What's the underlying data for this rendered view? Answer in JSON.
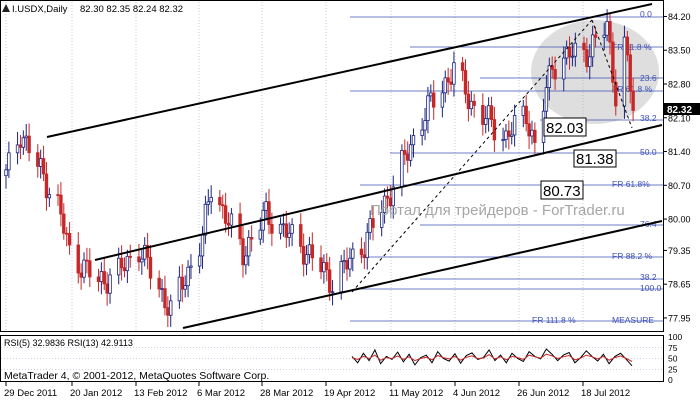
{
  "header": {
    "symbol_line": "I.USDX,Daily",
    "ohlc": "82.30 82.35 82.24 82.32"
  },
  "watermark": "Портал для трейдеров - ForTrader.ru",
  "copyright": "MetaTrader 4, © 2001-2012, MetaQuotes Software Corp.",
  "price_axis": {
    "ticks": [
      "84.20",
      "83.50",
      "82.80",
      "82.10",
      "81.40",
      "80.70",
      "80.00",
      "79.35",
      "78.65",
      "77.95"
    ],
    "current_price": "82.32"
  },
  "time_axis": {
    "labels": [
      "29 Dec 2011",
      "20 Jan 2012",
      "13 Feb 2012",
      "6 Mar 2012",
      "28 Mar 2012",
      "19 Apr 2012",
      "11 May 2012",
      "4 Jun 2012",
      "26 Jun 2012",
      "18 Jul 2012"
    ]
  },
  "price_labels": [
    "82.03",
    "81.38",
    "80.73"
  ],
  "fib_levels": [
    "0.0",
    "FR 11.8 %",
    "23.6",
    "FR 61.8 %",
    "38.2",
    "50.0",
    "FR 61.8%",
    "76.4",
    "FR 88.2 %",
    "38.2",
    "100.0",
    "FR 111.8 %",
    "MEASURE"
  ],
  "rsi": {
    "label": "RSI(5) 32.9836  RSI(13) 42.9113",
    "ticks": [
      "100",
      "75",
      "50",
      "25",
      "0"
    ]
  },
  "colors": {
    "up_candle": "#1a237e",
    "down_candle": "#c62828",
    "fib_line": "#3f51b5",
    "channel": "#000000",
    "ellipse": "#d8d8d8"
  },
  "chart_data": {
    "type": "candlestick",
    "ylim": [
      77.7,
      84.5
    ],
    "close_path": [
      {
        "date": "2011-12-29",
        "close": 80.9
      },
      {
        "date": "2012-01-03",
        "close": 81.8
      },
      {
        "date": "2012-01-16",
        "close": 80.3
      },
      {
        "date": "2012-01-20",
        "close": 79.3
      },
      {
        "date": "2012-01-30",
        "close": 78.7
      },
      {
        "date": "2012-02-06",
        "close": 78.9
      },
      {
        "date": "2012-02-13",
        "close": 79.4
      },
      {
        "date": "2012-02-24",
        "close": 78.1
      },
      {
        "date": "2012-03-06",
        "close": 79.6
      },
      {
        "date": "2012-03-09",
        "close": 80.7
      },
      {
        "date": "2012-03-20",
        "close": 79.3
      },
      {
        "date": "2012-03-28",
        "close": 80.1
      },
      {
        "date": "2012-04-10",
        "close": 79.4
      },
      {
        "date": "2012-04-20",
        "close": 78.7
      },
      {
        "date": "2012-05-01",
        "close": 79.5
      },
      {
        "date": "2012-05-11",
        "close": 80.7
      },
      {
        "date": "2012-05-22",
        "close": 82.2
      },
      {
        "date": "2012-06-01",
        "close": 83.1
      },
      {
        "date": "2012-06-08",
        "close": 82.3
      },
      {
        "date": "2012-06-19",
        "close": 81.7
      },
      {
        "date": "2012-06-26",
        "close": 82.2
      },
      {
        "date": "2012-06-29",
        "close": 81.5
      },
      {
        "date": "2012-07-05",
        "close": 83.2
      },
      {
        "date": "2012-07-11",
        "close": 83.4
      },
      {
        "date": "2012-07-18",
        "close": 83.5
      },
      {
        "date": "2012-07-24",
        "close": 84.0
      },
      {
        "date": "2012-07-27",
        "close": 82.6
      },
      {
        "date": "2012-07-30",
        "close": 83.6
      },
      {
        "date": "2012-08-02",
        "close": 82.3
      }
    ],
    "rsi5": [
      55,
      40,
      62,
      45,
      70,
      38,
      55,
      48,
      65,
      42,
      60,
      35,
      52,
      58,
      40,
      66,
      50,
      44,
      61,
      39,
      57,
      63,
      48,
      52,
      70,
      45,
      58,
      40,
      62,
      50,
      43,
      66,
      55,
      49,
      72,
      60,
      45,
      58,
      64,
      40,
      52,
      68,
      55,
      44,
      60,
      38,
      55,
      62,
      48,
      33
    ],
    "rsi13": [
      52,
      48,
      55,
      50,
      58,
      46,
      52,
      50,
      56,
      48,
      54,
      45,
      50,
      53,
      47,
      57,
      52,
      49,
      55,
      46,
      53,
      56,
      50,
      51,
      59,
      49,
      54,
      47,
      55,
      52,
      48,
      58,
      54,
      51,
      60,
      56,
      50,
      54,
      57,
      47,
      51,
      58,
      54,
      49,
      55,
      46,
      52,
      56,
      50,
      43
    ]
  }
}
